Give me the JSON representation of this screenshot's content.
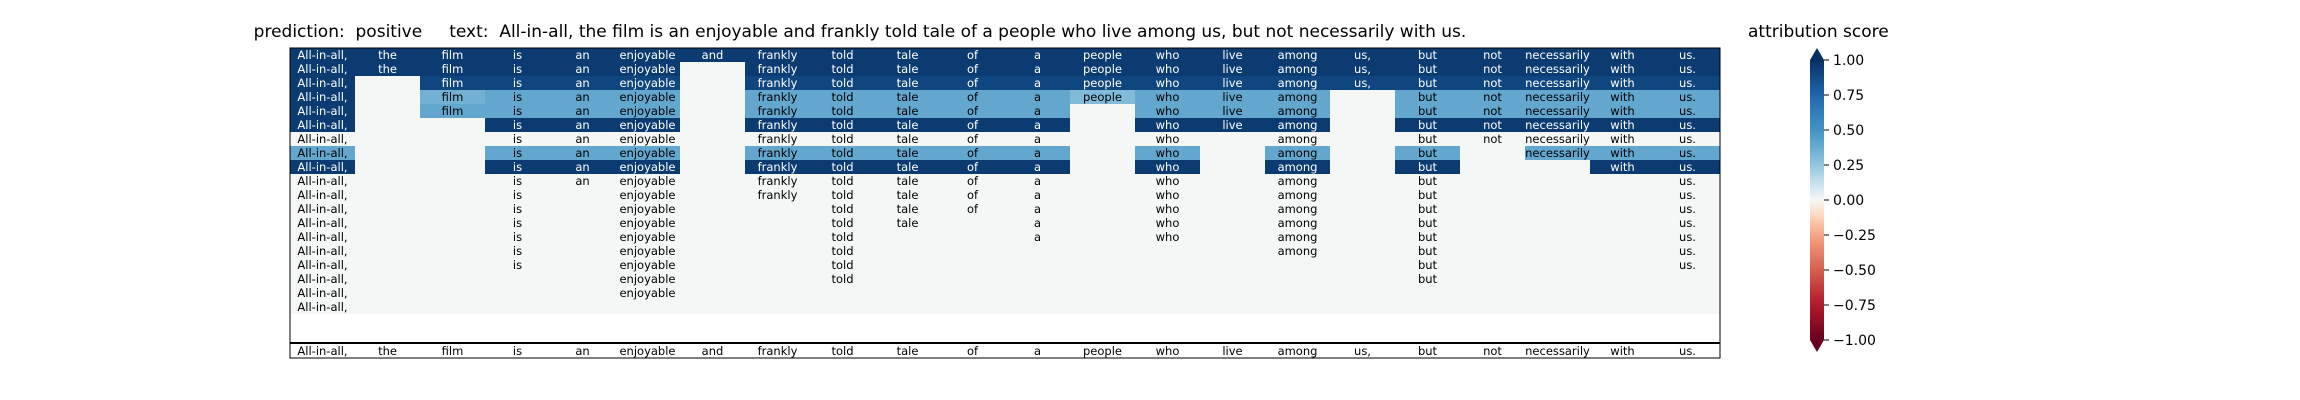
{
  "title": {
    "prediction_label": "prediction:",
    "prediction_value": "positive",
    "text_label": "text:",
    "text_value": "All-in-all, the film is an enjoyable and frankly told tale of a people who live among us, but not necessarily with us."
  },
  "colorbar": {
    "label": "attribution score",
    "ticks": [
      "1.00",
      "0.75",
      "0.50",
      "0.25",
      "0.00",
      "−0.25",
      "−0.50",
      "−0.75",
      "−1.00"
    ],
    "tick_values": [
      1.0,
      0.75,
      0.5,
      0.25,
      0.0,
      -0.25,
      -0.5,
      -0.75,
      -1.0
    ],
    "cmap": "RdBu",
    "range": [
      -1,
      1
    ]
  },
  "chart_data": {
    "type": "heatmap",
    "title": "prediction:  positive     text:  All-in-all, the film is an enjoyable and frankly told tale of a people who live among us, but not necessarily with us.",
    "columns": [
      "All-in-all,",
      "the",
      "film",
      "is",
      "an",
      "enjoyable",
      "and",
      "frankly",
      "told",
      "tale",
      "of",
      "a",
      "people",
      "who",
      "live",
      "among",
      "us,",
      "but",
      "not",
      "necessarily",
      "with",
      "us."
    ],
    "rows_present": [
      [
        1,
        1,
        1,
        1,
        1,
        1,
        1,
        1,
        1,
        1,
        1,
        1,
        1,
        1,
        1,
        1,
        1,
        1,
        1,
        1,
        1,
        1
      ],
      [
        1,
        1,
        1,
        1,
        1,
        1,
        0,
        1,
        1,
        1,
        1,
        1,
        1,
        1,
        1,
        1,
        1,
        1,
        1,
        1,
        1,
        1
      ],
      [
        1,
        0,
        1,
        1,
        1,
        1,
        0,
        1,
        1,
        1,
        1,
        1,
        1,
        1,
        1,
        1,
        1,
        1,
        1,
        1,
        1,
        1
      ],
      [
        1,
        0,
        1,
        1,
        1,
        1,
        0,
        1,
        1,
        1,
        1,
        1,
        1,
        1,
        1,
        1,
        0,
        1,
        1,
        1,
        1,
        1
      ],
      [
        1,
        0,
        1,
        1,
        1,
        1,
        0,
        1,
        1,
        1,
        1,
        1,
        0,
        1,
        1,
        1,
        0,
        1,
        1,
        1,
        1,
        1
      ],
      [
        1,
        0,
        0,
        1,
        1,
        1,
        0,
        1,
        1,
        1,
        1,
        1,
        0,
        1,
        1,
        1,
        0,
        1,
        1,
        1,
        1,
        1
      ],
      [
        1,
        0,
        0,
        1,
        1,
        1,
        0,
        1,
        1,
        1,
        1,
        1,
        0,
        1,
        0,
        1,
        0,
        1,
        1,
        1,
        1,
        1
      ],
      [
        1,
        0,
        0,
        1,
        1,
        1,
        0,
        1,
        1,
        1,
        1,
        1,
        0,
        1,
        0,
        1,
        0,
        1,
        0,
        1,
        1,
        1
      ],
      [
        1,
        0,
        0,
        1,
        1,
        1,
        0,
        1,
        1,
        1,
        1,
        1,
        0,
        1,
        0,
        1,
        0,
        1,
        0,
        0,
        1,
        1
      ],
      [
        1,
        0,
        0,
        1,
        1,
        1,
        0,
        1,
        1,
        1,
        1,
        1,
        0,
        1,
        0,
        1,
        0,
        1,
        0,
        0,
        0,
        1
      ],
      [
        1,
        0,
        0,
        1,
        0,
        1,
        0,
        1,
        1,
        1,
        1,
        1,
        0,
        1,
        0,
        1,
        0,
        1,
        0,
        0,
        0,
        1
      ],
      [
        1,
        0,
        0,
        1,
        0,
        1,
        0,
        0,
        1,
        1,
        1,
        1,
        0,
        1,
        0,
        1,
        0,
        1,
        0,
        0,
        0,
        1
      ],
      [
        1,
        0,
        0,
        1,
        0,
        1,
        0,
        0,
        1,
        1,
        0,
        1,
        0,
        1,
        0,
        1,
        0,
        1,
        0,
        0,
        0,
        1
      ],
      [
        1,
        0,
        0,
        1,
        0,
        1,
        0,
        0,
        1,
        0,
        0,
        1,
        0,
        1,
        0,
        1,
        0,
        1,
        0,
        0,
        0,
        1
      ],
      [
        1,
        0,
        0,
        1,
        0,
        1,
        0,
        0,
        1,
        0,
        0,
        0,
        0,
        0,
        0,
        1,
        0,
        1,
        0,
        0,
        0,
        1
      ],
      [
        1,
        0,
        0,
        1,
        0,
        1,
        0,
        0,
        1,
        0,
        0,
        0,
        0,
        0,
        0,
        0,
        0,
        1,
        0,
        0,
        0,
        1
      ],
      [
        1,
        0,
        0,
        0,
        0,
        1,
        0,
        0,
        1,
        0,
        0,
        0,
        0,
        0,
        0,
        0,
        0,
        1,
        0,
        0,
        0,
        0
      ],
      [
        1,
        0,
        0,
        0,
        0,
        1,
        0,
        0,
        0,
        0,
        0,
        0,
        0,
        0,
        0,
        0,
        0,
        0,
        0,
        0,
        0,
        0
      ],
      [
        1,
        0,
        0,
        0,
        0,
        0,
        0,
        0,
        0,
        0,
        0,
        0,
        0,
        0,
        0,
        0,
        0,
        0,
        0,
        0,
        0,
        0
      ]
    ],
    "rows_value": [
      [
        0.95,
        0.95,
        0.95,
        0.95,
        0.95,
        0.95,
        0.95,
        0.95,
        0.95,
        0.95,
        0.95,
        0.95,
        0.95,
        0.95,
        0.95,
        0.95,
        0.95,
        0.95,
        0.95,
        0.95,
        0.95,
        0.95
      ],
      [
        0.95,
        0.95,
        0.95,
        0.95,
        0.95,
        0.95,
        0,
        0.95,
        0.95,
        0.95,
        0.95,
        0.95,
        0.95,
        0.95,
        0.95,
        0.95,
        0.95,
        0.95,
        0.95,
        0.95,
        0.95,
        0.95
      ],
      [
        0.95,
        0,
        0.9,
        0.9,
        0.9,
        0.9,
        0,
        0.9,
        0.9,
        0.9,
        0.9,
        0.9,
        0.9,
        0.9,
        0.9,
        0.9,
        0.9,
        0.9,
        0.9,
        0.9,
        0.9,
        0.9
      ],
      [
        0.95,
        0,
        0.35,
        0.4,
        0.4,
        0.4,
        0,
        0.4,
        0.4,
        0.4,
        0.4,
        0.4,
        0.3,
        0.4,
        0.4,
        0.4,
        0,
        0.4,
        0.4,
        0.4,
        0.4,
        0.4
      ],
      [
        0.95,
        0,
        0.4,
        0.4,
        0.4,
        0.4,
        0,
        0.4,
        0.4,
        0.4,
        0.4,
        0.4,
        0,
        0.4,
        0.4,
        0.4,
        0,
        0.4,
        0.4,
        0.4,
        0.4,
        0.4
      ],
      [
        0.95,
        0,
        0,
        0.95,
        0.95,
        0.95,
        0,
        0.95,
        0.95,
        0.95,
        0.95,
        0.95,
        0,
        0.95,
        0.95,
        0.95,
        0,
        0.95,
        0.95,
        0.95,
        0.95,
        0.95
      ],
      [
        0,
        0,
        0,
        0,
        0,
        0,
        0,
        0,
        0,
        0,
        0,
        0,
        0,
        0,
        0,
        0,
        0,
        0,
        0,
        0,
        0,
        0
      ],
      [
        0.4,
        0,
        0,
        0.4,
        0.4,
        0.4,
        0,
        0.4,
        0.4,
        0.4,
        0.4,
        0.4,
        0,
        0.4,
        0,
        0.4,
        0,
        0.4,
        0,
        0.4,
        0.4,
        0.4
      ],
      [
        0.95,
        0,
        0,
        0.95,
        0.95,
        0.95,
        0,
        0.95,
        0.95,
        0.95,
        0.95,
        0.95,
        0,
        0.95,
        0,
        0.95,
        0,
        0.95,
        0,
        0,
        0.95,
        0.95
      ],
      [
        0,
        0,
        0,
        0,
        0,
        0,
        0,
        0,
        0,
        0,
        0,
        0,
        0,
        0,
        0,
        0,
        0,
        0,
        0,
        0,
        0,
        0
      ],
      [
        0,
        0,
        0,
        0,
        0,
        0,
        0,
        0,
        0,
        0,
        0,
        0,
        0,
        0,
        0,
        0,
        0,
        0,
        0,
        0,
        0,
        0
      ],
      [
        0,
        0,
        0,
        0,
        0,
        0,
        0,
        0,
        0,
        0,
        0,
        0,
        0,
        0,
        0,
        0,
        0,
        0,
        0,
        0,
        0,
        0
      ],
      [
        0,
        0,
        0,
        0,
        0,
        0,
        0,
        0,
        0,
        0,
        0,
        0,
        0,
        0,
        0,
        0,
        0,
        0,
        0,
        0,
        0,
        0
      ],
      [
        0,
        0,
        0,
        0,
        0,
        0,
        0,
        0,
        0,
        0,
        0,
        0,
        0,
        0,
        0,
        0,
        0,
        0,
        0,
        0,
        0,
        0
      ],
      [
        0,
        0,
        0,
        0,
        0,
        0,
        0,
        0,
        0,
        0,
        0,
        0,
        0,
        0,
        0,
        0,
        0,
        0,
        0,
        0,
        0,
        0
      ],
      [
        0,
        0,
        0,
        0,
        0,
        0,
        0,
        0,
        0,
        0,
        0,
        0,
        0,
        0,
        0,
        0,
        0,
        0,
        0,
        0,
        0,
        0
      ],
      [
        0,
        0,
        0,
        0,
        0,
        0,
        0,
        0,
        0,
        0,
        0,
        0,
        0,
        0,
        0,
        0,
        0,
        0,
        0,
        0,
        0,
        0
      ],
      [
        0,
        0,
        0,
        0,
        0,
        0,
        0,
        0,
        0,
        0,
        0,
        0,
        0,
        0,
        0,
        0,
        0,
        0,
        0,
        0,
        0,
        0
      ],
      [
        0,
        0,
        0,
        0,
        0,
        0,
        0,
        0,
        0,
        0,
        0,
        0,
        0,
        0,
        0,
        0,
        0,
        0,
        0,
        0,
        0,
        0
      ]
    ],
    "color_range": [
      -1,
      1
    ]
  },
  "colors": {
    "empty_cell": "#f5f7f7",
    "frame": "#000000"
  }
}
